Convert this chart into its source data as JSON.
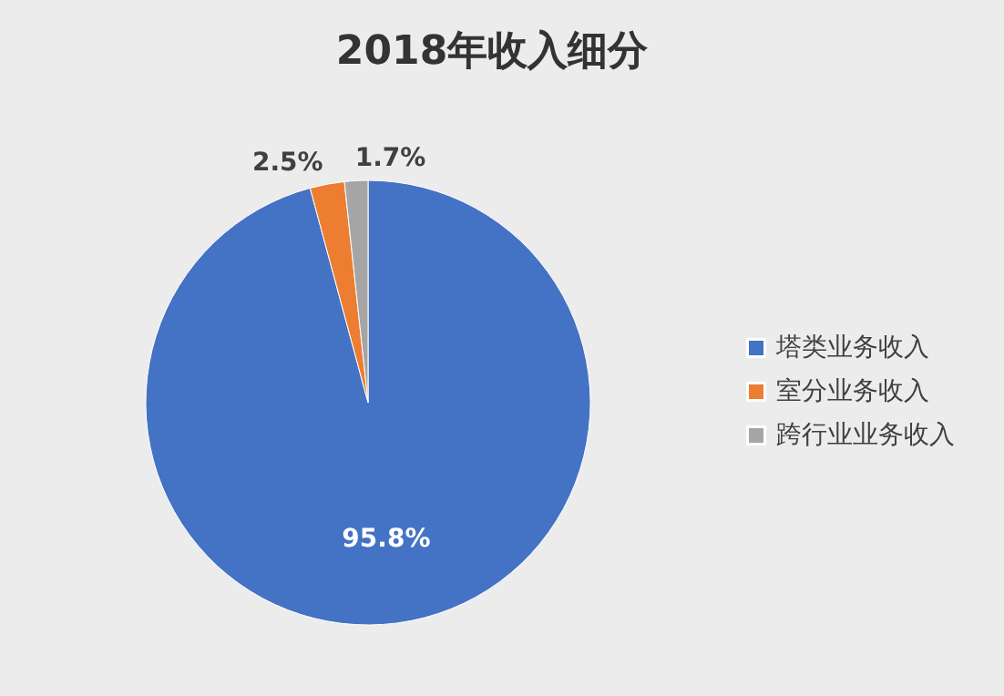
{
  "chart_data": {
    "type": "pie",
    "title": "2018年收入细分",
    "categories": [
      "塔类业务收入",
      "室分业务收入",
      "跨行业业务收入"
    ],
    "values": [
      95.8,
      2.5,
      1.7
    ],
    "colors": [
      "#4472c4",
      "#ed7d31",
      "#a5a5a5"
    ],
    "value_labels": [
      "95.8%",
      "2.5%",
      "1.7%"
    ],
    "legend": "right"
  }
}
